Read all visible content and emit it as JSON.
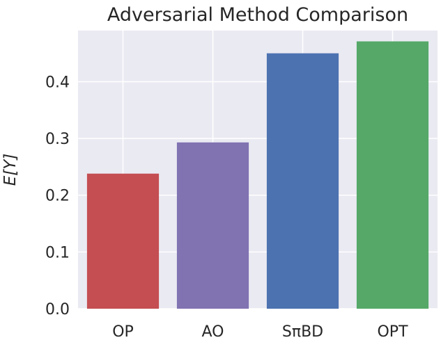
{
  "chart_data": {
    "type": "bar",
    "title": "Adversarial Method Comparison",
    "xlabel": "",
    "ylabel": "E[Y]",
    "categories": [
      "OP",
      "AO",
      "SπBD",
      "OPT"
    ],
    "values": [
      0.238,
      0.293,
      0.45,
      0.471
    ],
    "colors": [
      "#c44e52",
      "#8172b2",
      "#4c72b0",
      "#55a868"
    ],
    "ylim": [
      0,
      0.49
    ],
    "yticks": [
      0.0,
      0.1,
      0.2,
      0.3,
      0.4
    ],
    "ytick_labels": [
      "0.0",
      "0.1",
      "0.2",
      "0.3",
      "0.4"
    ],
    "grid": true,
    "background": "#eaeaf2"
  }
}
